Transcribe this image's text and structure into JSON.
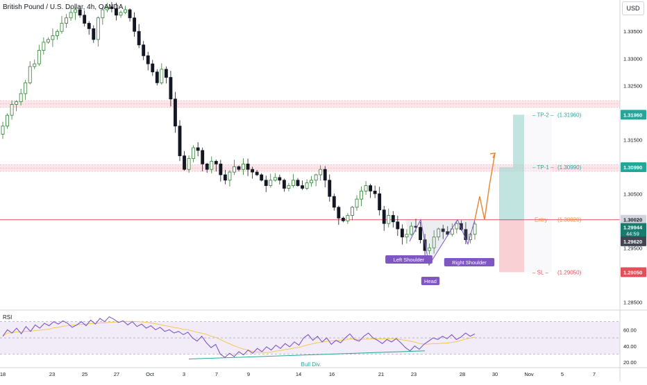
{
  "header": {
    "title": "British Pound / U.S. Dollar, 4h, OANDA",
    "currency_button": "USD"
  },
  "colors": {
    "bull": "#26a69a",
    "bear": "#131722",
    "candle_up_body": "#2e7d32",
    "tp": "#26a69a",
    "entry": "#e8893a",
    "sl": "#e2505a",
    "rsi": "#7e57c2",
    "rsi_ma": "#f5c542",
    "pattern_label_bg": "#7e57c2",
    "sr_band": "#f8c5cb"
  },
  "levels": {
    "tp2": {
      "label": "TP-2",
      "value": "(1.31960)",
      "price": 1.3196,
      "tag": "1.31960"
    },
    "tp1": {
      "label": "TP-1",
      "value": "(1.30990)",
      "price": 1.3099,
      "tag": "1.30990"
    },
    "entry": {
      "label": "Entry",
      "value": "(1.30020)",
      "price": 1.3002,
      "tag": "1.30020"
    },
    "sl": {
      "label": "SL",
      "value": "(1.29050)",
      "price": 1.2905,
      "tag": "1.29050"
    },
    "current": {
      "tag": "1.29944",
      "countdown": "44:59",
      "price": 1.29944
    },
    "last_low": {
      "tag": "1.29620",
      "price": 1.2962
    }
  },
  "pattern_labels": {
    "left_shoulder": "Left Shoulder",
    "head": "Head",
    "right_shoulder": "Right Shoulder",
    "bull_div": "Bull Div."
  },
  "rsi_panel": {
    "label": "RSI",
    "ticks": [
      "60.00",
      "40.00",
      "20.00"
    ]
  },
  "chart_data": {
    "type": "candlestick",
    "title": "British Pound / U.S. Dollar, 4h, OANDA",
    "ylim": [
      1.2835,
      1.3408
    ],
    "y_ticks": [
      "1.33500",
      "1.33000",
      "1.32500",
      "1.31500",
      "1.30500",
      "1.29500",
      "1.28500"
    ],
    "x_ticks": [
      "18",
      "23",
      "25",
      "27",
      "Oct",
      "3",
      "7",
      "9",
      "14",
      "16",
      "21",
      "23",
      "28",
      "30",
      "Nov",
      "5",
      "7"
    ],
    "path_close": [
      1.3175,
      1.3195,
      1.3215,
      1.322,
      1.3235,
      1.3255,
      1.3285,
      1.329,
      1.3315,
      1.333,
      1.3335,
      1.3342,
      1.335,
      1.3365,
      1.3375,
      1.3385,
      1.339,
      1.338,
      1.3365,
      1.3355,
      1.3335,
      1.3375,
      1.339,
      1.3395,
      1.3392,
      1.338,
      1.3385,
      1.339,
      1.3375,
      1.335,
      1.3325,
      1.3305,
      1.329,
      1.3275,
      1.3255,
      1.328,
      1.3265,
      1.3225,
      1.3175,
      1.312,
      1.3095,
      1.3115,
      1.3135,
      1.313,
      1.3105,
      1.3095,
      1.311,
      1.3105,
      1.3085,
      1.3075,
      1.309,
      1.31,
      1.3095,
      1.3105,
      1.3095,
      1.309,
      1.3085,
      1.3075,
      1.3065,
      1.3075,
      1.308,
      1.3075,
      1.306,
      1.3065,
      1.3075,
      1.3065,
      1.306,
      1.307,
      1.3075,
      1.3085,
      1.3095,
      1.3075,
      1.3045,
      1.3025,
      1.3005,
      1.3,
      1.301,
      1.3025,
      1.304,
      1.3055,
      1.3065,
      1.3055,
      1.305,
      1.302,
      1.2995,
      1.301,
      1.2998,
      1.2985,
      1.297,
      1.2975,
      1.299,
      1.2988,
      1.2965,
      1.2945,
      1.295,
      1.297,
      1.2985,
      1.298,
      1.2975,
      1.2985,
      1.2995,
      1.2984,
      1.2965,
      1.2975,
      1.2994
    ],
    "head_and_shoulders": {
      "left_shoulder_low": 1.2962,
      "neckline": 1.3002,
      "head_low": 1.2918,
      "right_shoulder_low": 1.2957,
      "projection": [
        1.3002,
        1.3045,
        1.3002,
        1.3065,
        1.3125
      ]
    },
    "trade_setup": {
      "entry": 1.3002,
      "tp1": 1.3099,
      "tp2": 1.3196,
      "sl": 1.2905
    },
    "rsi": {
      "ylim": [
        15,
        80
      ],
      "upper": 70,
      "mid": 50,
      "lower": 30,
      "values": [
        52,
        60,
        56,
        62,
        55,
        64,
        58,
        66,
        62,
        68,
        65,
        70,
        67,
        71,
        68,
        63,
        66,
        70,
        65,
        72,
        67,
        74,
        70,
        76,
        73,
        69,
        71,
        66,
        70,
        64,
        67,
        62,
        65,
        60,
        63,
        58,
        60,
        56,
        58,
        54,
        57,
        50,
        46,
        52,
        44,
        38,
        42,
        30,
        26,
        31,
        27,
        33,
        29,
        35,
        31,
        37,
        33,
        39,
        35,
        41,
        37,
        43,
        39,
        45,
        41,
        50,
        54,
        47,
        52,
        45,
        50,
        42,
        47,
        44,
        50,
        55,
        48,
        46,
        52,
        56,
        50,
        47,
        43,
        48,
        45,
        49,
        44,
        38,
        34,
        40,
        36,
        42,
        46,
        50,
        48,
        52,
        49,
        54,
        48,
        51,
        56,
        52,
        55
      ]
    }
  }
}
